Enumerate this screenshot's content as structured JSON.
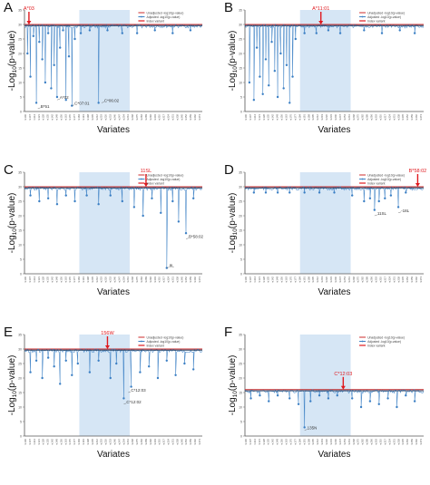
{
  "figure": {
    "ylabel_main": "-Log",
    "ylabel_sub": "10",
    "ylabel_tail": "(p-value)",
    "xlabel": "Variates"
  },
  "legend": {
    "unadjusted": "Unadjusted -log10(p-value)",
    "adjusted": "Adjusted -log10(p-value)",
    "index": "Index variant"
  },
  "colors": {
    "unadjusted": "#cc2b2b",
    "adjusted": "#3b7fc4",
    "shade": "#d6e6f5",
    "index": "#e0191e"
  },
  "chart_data": [
    {
      "panel": "A",
      "type": "line",
      "x_range": [
        0,
        120
      ],
      "y_range": [
        0,
        35
      ],
      "baseline": 30,
      "shade_range": [
        37,
        71
      ],
      "index_x": 3,
      "index_label": "A*03",
      "index_direction": "down",
      "ticks": [
        "15",
        "20",
        "25",
        "30",
        "35"
      ],
      "annotations": [
        {
          "x": 9,
          "y": 1,
          "text": "B*51"
        },
        {
          "x": 22,
          "y": 4,
          "text": "A*02"
        },
        {
          "x": 32,
          "y": 2,
          "text": "C*07:01"
        },
        {
          "x": 52,
          "y": 3,
          "text": "C*06:02"
        }
      ],
      "dips": [
        {
          "x": 2,
          "y": 20
        },
        {
          "x": 4,
          "y": 12
        },
        {
          "x": 6,
          "y": 26
        },
        {
          "x": 8,
          "y": 3
        },
        {
          "x": 10,
          "y": 24
        },
        {
          "x": 12,
          "y": 18
        },
        {
          "x": 14,
          "y": 10
        },
        {
          "x": 16,
          "y": 27
        },
        {
          "x": 18,
          "y": 8
        },
        {
          "x": 20,
          "y": 16
        },
        {
          "x": 22,
          "y": 5
        },
        {
          "x": 24,
          "y": 22
        },
        {
          "x": 26,
          "y": 28
        },
        {
          "x": 28,
          "y": 4
        },
        {
          "x": 30,
          "y": 19
        },
        {
          "x": 32,
          "y": 2
        },
        {
          "x": 34,
          "y": 25
        },
        {
          "x": 38,
          "y": 27
        },
        {
          "x": 44,
          "y": 28
        },
        {
          "x": 50,
          "y": 3
        },
        {
          "x": 56,
          "y": 28
        },
        {
          "x": 66,
          "y": 27
        },
        {
          "x": 76,
          "y": 27
        },
        {
          "x": 88,
          "y": 28
        },
        {
          "x": 100,
          "y": 27
        },
        {
          "x": 112,
          "y": 28
        }
      ]
    },
    {
      "panel": "B",
      "type": "line",
      "x_range": [
        0,
        120
      ],
      "y_range": [
        0,
        35
      ],
      "baseline": 30,
      "shade_range": [
        37,
        71
      ],
      "index_x": 51,
      "index_label": "A*11:01",
      "index_direction": "down",
      "ticks": [
        "",
        "",
        "",
        "",
        ""
      ],
      "annotations": [],
      "dips": [
        {
          "x": 3,
          "y": 10
        },
        {
          "x": 6,
          "y": 4
        },
        {
          "x": 8,
          "y": 22
        },
        {
          "x": 10,
          "y": 12
        },
        {
          "x": 12,
          "y": 6
        },
        {
          "x": 14,
          "y": 18
        },
        {
          "x": 16,
          "y": 9
        },
        {
          "x": 18,
          "y": 24
        },
        {
          "x": 20,
          "y": 14
        },
        {
          "x": 22,
          "y": 5
        },
        {
          "x": 24,
          "y": 20
        },
        {
          "x": 26,
          "y": 8
        },
        {
          "x": 28,
          "y": 16
        },
        {
          "x": 30,
          "y": 3
        },
        {
          "x": 32,
          "y": 12
        },
        {
          "x": 34,
          "y": 25
        },
        {
          "x": 40,
          "y": 27
        },
        {
          "x": 48,
          "y": 27
        },
        {
          "x": 56,
          "y": 28
        },
        {
          "x": 64,
          "y": 27
        },
        {
          "x": 80,
          "y": 28
        },
        {
          "x": 92,
          "y": 27
        },
        {
          "x": 104,
          "y": 28
        },
        {
          "x": 114,
          "y": 27
        }
      ]
    },
    {
      "panel": "C",
      "type": "line",
      "x_range": [
        0,
        120
      ],
      "y_range": [
        0,
        35
      ],
      "baseline": 30,
      "shade_range": [
        37,
        71
      ],
      "index_x": 82,
      "index_label": "11SL",
      "index_direction": "down",
      "ticks": [
        "",
        "",
        "",
        "",
        ""
      ],
      "annotations": [
        {
          "x": 96,
          "y": 2,
          "text": "8L"
        },
        {
          "x": 109,
          "y": 12,
          "text": "B*58:02"
        }
      ],
      "dips": [
        {
          "x": 4,
          "y": 27
        },
        {
          "x": 10,
          "y": 25
        },
        {
          "x": 16,
          "y": 26
        },
        {
          "x": 22,
          "y": 24
        },
        {
          "x": 28,
          "y": 27
        },
        {
          "x": 34,
          "y": 25
        },
        {
          "x": 42,
          "y": 27
        },
        {
          "x": 50,
          "y": 24
        },
        {
          "x": 58,
          "y": 27
        },
        {
          "x": 66,
          "y": 25
        },
        {
          "x": 74,
          "y": 23
        },
        {
          "x": 80,
          "y": 20
        },
        {
          "x": 86,
          "y": 26
        },
        {
          "x": 92,
          "y": 21
        },
        {
          "x": 96,
          "y": 2
        },
        {
          "x": 100,
          "y": 25
        },
        {
          "x": 104,
          "y": 18
        },
        {
          "x": 109,
          "y": 14
        },
        {
          "x": 114,
          "y": 26
        }
      ]
    },
    {
      "panel": "D",
      "type": "line",
      "x_range": [
        0,
        120
      ],
      "y_range": [
        0,
        35
      ],
      "baseline": 30,
      "shade_range": [
        37,
        71
      ],
      "index_x": 116,
      "index_label": "B*58:02",
      "index_direction": "down",
      "ticks": [
        "",
        "",
        "",
        "",
        ""
      ],
      "annotations": [
        {
          "x": 87,
          "y": 20,
          "text": "11SL"
        },
        {
          "x": 103,
          "y": 21,
          "text": "-18L"
        }
      ],
      "dips": [
        {
          "x": 6,
          "y": 28
        },
        {
          "x": 14,
          "y": 28
        },
        {
          "x": 22,
          "y": 28
        },
        {
          "x": 30,
          "y": 28
        },
        {
          "x": 40,
          "y": 28
        },
        {
          "x": 50,
          "y": 28
        },
        {
          "x": 60,
          "y": 28
        },
        {
          "x": 72,
          "y": 27
        },
        {
          "x": 80,
          "y": 25
        },
        {
          "x": 84,
          "y": 26
        },
        {
          "x": 87,
          "y": 22
        },
        {
          "x": 90,
          "y": 25
        },
        {
          "x": 94,
          "y": 26
        },
        {
          "x": 98,
          "y": 27
        },
        {
          "x": 103,
          "y": 23
        },
        {
          "x": 108,
          "y": 28
        }
      ]
    },
    {
      "panel": "E",
      "type": "line",
      "x_range": [
        0,
        120
      ],
      "y_range": [
        0,
        35
      ],
      "baseline": 30,
      "shade_range": [
        37,
        71
      ],
      "index_x": 56,
      "index_label": "156W",
      "index_direction": "down",
      "ticks": [
        "",
        "",
        "",
        "",
        ""
      ],
      "annotations": [
        {
          "x": 70,
          "y": 15,
          "text": "C*12:03"
        },
        {
          "x": 67,
          "y": 11,
          "text": "C*12:02"
        }
      ],
      "dips": [
        {
          "x": 4,
          "y": 22
        },
        {
          "x": 8,
          "y": 26
        },
        {
          "x": 12,
          "y": 20
        },
        {
          "x": 16,
          "y": 27
        },
        {
          "x": 20,
          "y": 24
        },
        {
          "x": 24,
          "y": 18
        },
        {
          "x": 28,
          "y": 26
        },
        {
          "x": 32,
          "y": 21
        },
        {
          "x": 36,
          "y": 25
        },
        {
          "x": 44,
          "y": 22
        },
        {
          "x": 50,
          "y": 26
        },
        {
          "x": 58,
          "y": 20
        },
        {
          "x": 62,
          "y": 25
        },
        {
          "x": 67,
          "y": 13
        },
        {
          "x": 72,
          "y": 17
        },
        {
          "x": 78,
          "y": 22
        },
        {
          "x": 84,
          "y": 24
        },
        {
          "x": 90,
          "y": 20
        },
        {
          "x": 96,
          "y": 26
        },
        {
          "x": 102,
          "y": 21
        },
        {
          "x": 108,
          "y": 25
        },
        {
          "x": 114,
          "y": 23
        }
      ]
    },
    {
      "panel": "F",
      "type": "line",
      "x_range": [
        0,
        120
      ],
      "y_range": [
        0,
        35
      ],
      "baseline": 16,
      "shade_range": [
        37,
        71
      ],
      "index_x": 66,
      "index_label": "C*12:03",
      "index_direction": "down",
      "ticks": [
        "",
        "",
        "",
        "",
        ""
      ],
      "annotations": [
        {
          "x": 40,
          "y": 2,
          "text": "135N"
        }
      ],
      "dips": [
        {
          "x": 4,
          "y": 13
        },
        {
          "x": 10,
          "y": 14
        },
        {
          "x": 16,
          "y": 12
        },
        {
          "x": 22,
          "y": 14
        },
        {
          "x": 30,
          "y": 13
        },
        {
          "x": 36,
          "y": 11
        },
        {
          "x": 40,
          "y": 3
        },
        {
          "x": 44,
          "y": 12
        },
        {
          "x": 50,
          "y": 14
        },
        {
          "x": 56,
          "y": 13
        },
        {
          "x": 62,
          "y": 14
        },
        {
          "x": 72,
          "y": 13
        },
        {
          "x": 78,
          "y": 10
        },
        {
          "x": 84,
          "y": 12
        },
        {
          "x": 90,
          "y": 11
        },
        {
          "x": 96,
          "y": 13
        },
        {
          "x": 102,
          "y": 10
        },
        {
          "x": 108,
          "y": 14
        },
        {
          "x": 114,
          "y": 12
        }
      ]
    }
  ]
}
